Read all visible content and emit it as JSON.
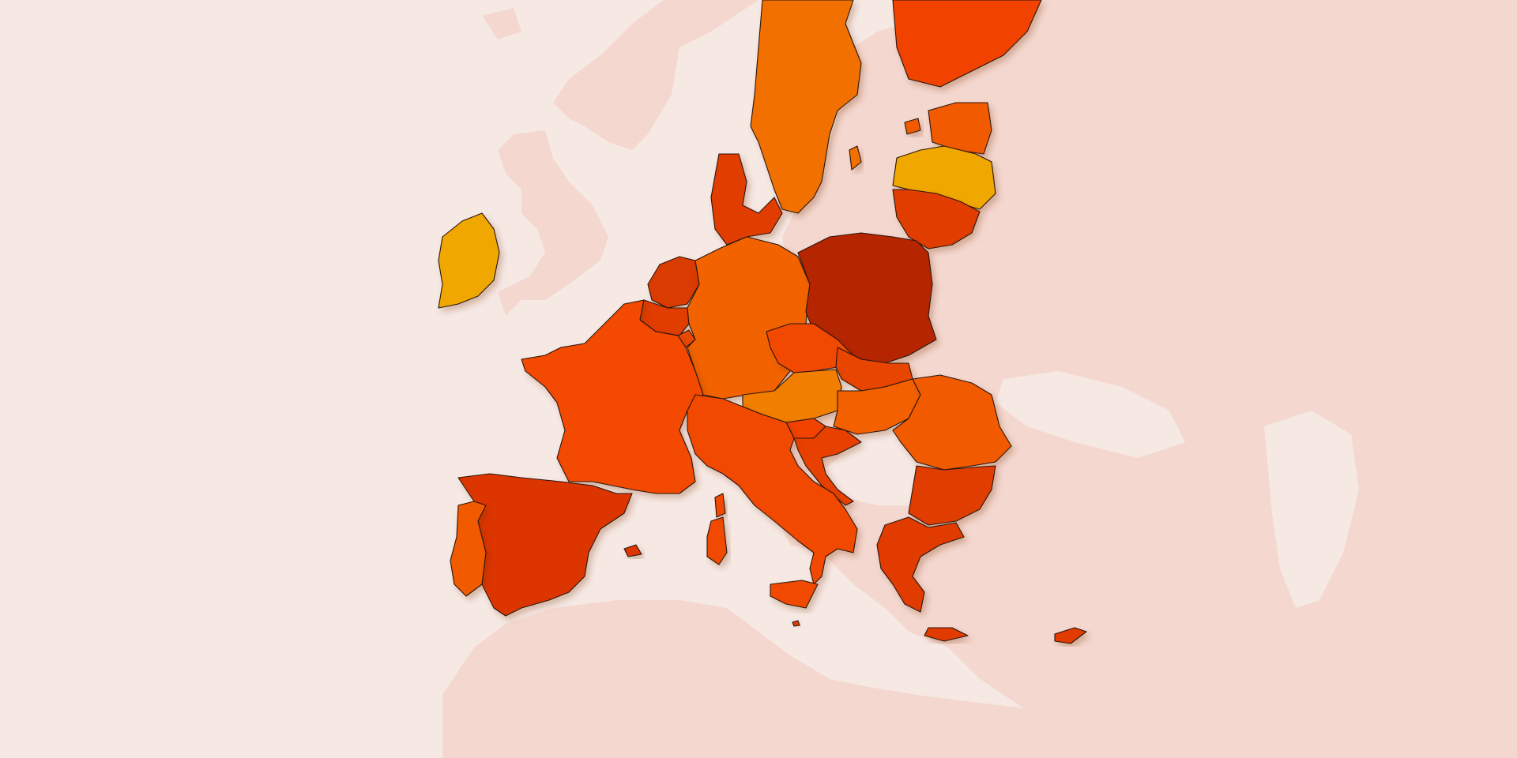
{
  "map": {
    "background_sea": "#f6e9e4",
    "background_land": "#f4d8cf",
    "border_color": "#2a160f",
    "countries": [
      {
        "id": "ireland",
        "color": "#f0a800"
      },
      {
        "id": "portugal",
        "color": "#f25a00"
      },
      {
        "id": "spain",
        "color": "#dd3600"
      },
      {
        "id": "france",
        "color": "#f34800"
      },
      {
        "id": "belgium",
        "color": "#e23e00"
      },
      {
        "id": "netherlands",
        "color": "#d93a00"
      },
      {
        "id": "luxembourg",
        "color": "#e84a00"
      },
      {
        "id": "germany",
        "color": "#f26400"
      },
      {
        "id": "denmark",
        "color": "#e23e00"
      },
      {
        "id": "sweden",
        "color": "#f27000"
      },
      {
        "id": "finland",
        "color": "#f24200"
      },
      {
        "id": "estonia",
        "color": "#f25a00"
      },
      {
        "id": "latvia",
        "color": "#f0a800"
      },
      {
        "id": "lithuania",
        "color": "#e23e00"
      },
      {
        "id": "poland",
        "color": "#b52800"
      },
      {
        "id": "czechia",
        "color": "#f24800"
      },
      {
        "id": "slovakia",
        "color": "#e84400"
      },
      {
        "id": "austria",
        "color": "#f27e00"
      },
      {
        "id": "hungary",
        "color": "#f26000"
      },
      {
        "id": "slovenia",
        "color": "#f24200"
      },
      {
        "id": "croatia",
        "color": "#e84000"
      },
      {
        "id": "italy",
        "color": "#f24a00"
      },
      {
        "id": "romania",
        "color": "#f25a00"
      },
      {
        "id": "bulgaria",
        "color": "#e23e00"
      },
      {
        "id": "greece",
        "color": "#e23a00"
      },
      {
        "id": "cyprus",
        "color": "#e23a00"
      },
      {
        "id": "malta",
        "color": "#e23a00"
      }
    ]
  }
}
